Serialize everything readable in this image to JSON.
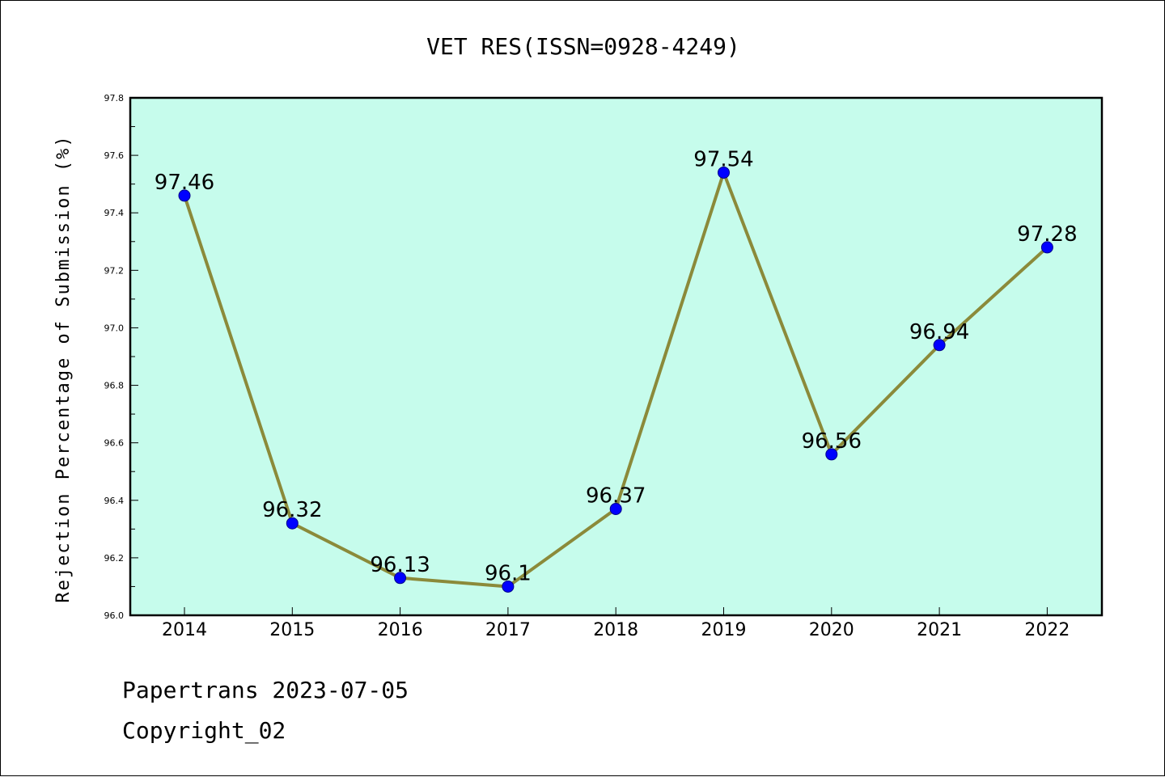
{
  "chart_data": {
    "type": "line",
    "title": "VET RES(ISSN=0928-4249)",
    "xlabel": "",
    "ylabel": "Rejection Percentage of Submission (%)",
    "categories": [
      "2014",
      "2015",
      "2016",
      "2017",
      "2018",
      "2019",
      "2020",
      "2021",
      "2022"
    ],
    "values": [
      97.46,
      96.32,
      96.13,
      96.1,
      96.37,
      97.54,
      96.56,
      96.94,
      97.28
    ],
    "data_labels": [
      "97.46",
      "96.32",
      "96.13",
      "96.1",
      "96.37",
      "97.54",
      "96.56",
      "96.94",
      "97.28"
    ],
    "ylim": [
      96.0,
      97.8
    ],
    "yticks": [
      "96.0",
      "96.2",
      "96.4",
      "96.6",
      "96.8",
      "97.0",
      "97.2",
      "97.4",
      "97.6",
      "97.8"
    ],
    "grid": false,
    "legend": "none"
  },
  "colors": {
    "plot_background": "#c6fcec",
    "line": "#8b8a3a",
    "marker_fill": "#0000ff",
    "marker_edge": "#00008b",
    "axes": "#000000"
  },
  "footer": {
    "line1": "Papertrans 2023-07-05",
    "line2": "Copyright_02"
  }
}
